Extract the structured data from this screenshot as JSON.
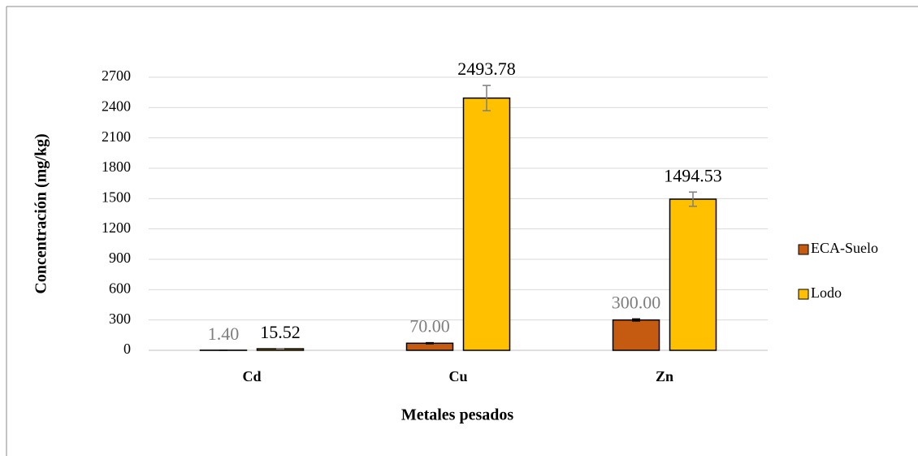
{
  "chart_data": {
    "type": "bar",
    "categories": [
      "Cd",
      "Cu",
      "Zn"
    ],
    "series": [
      {
        "name": "ECA-Suelo",
        "color": "#c55a11",
        "label_color": "#7f7f7f",
        "error_color": "#000000",
        "values": [
          1.4,
          70,
          300
        ],
        "value_labels": [
          "1.40",
          "70.00",
          "300.00"
        ],
        "errors": [
          0.1,
          5,
          10
        ]
      },
      {
        "name": "Lodo",
        "color": "#ffc000",
        "label_color": "#000000",
        "error_color": "#7f7f7f",
        "values": [
          15.52,
          2493.78,
          1494.53
        ],
        "value_labels": [
          "15.52",
          "2493.78",
          "1494.53"
        ],
        "errors": [
          2,
          125,
          70
        ]
      }
    ],
    "xlabel": "Metales pesados",
    "ylabel": "Concentración (mg/kg)",
    "ylim": [
      0,
      2700
    ],
    "yticks": [
      0,
      300,
      600,
      900,
      1200,
      1500,
      1800,
      2100,
      2400,
      2700
    ],
    "grid": true,
    "legend": "right"
  }
}
